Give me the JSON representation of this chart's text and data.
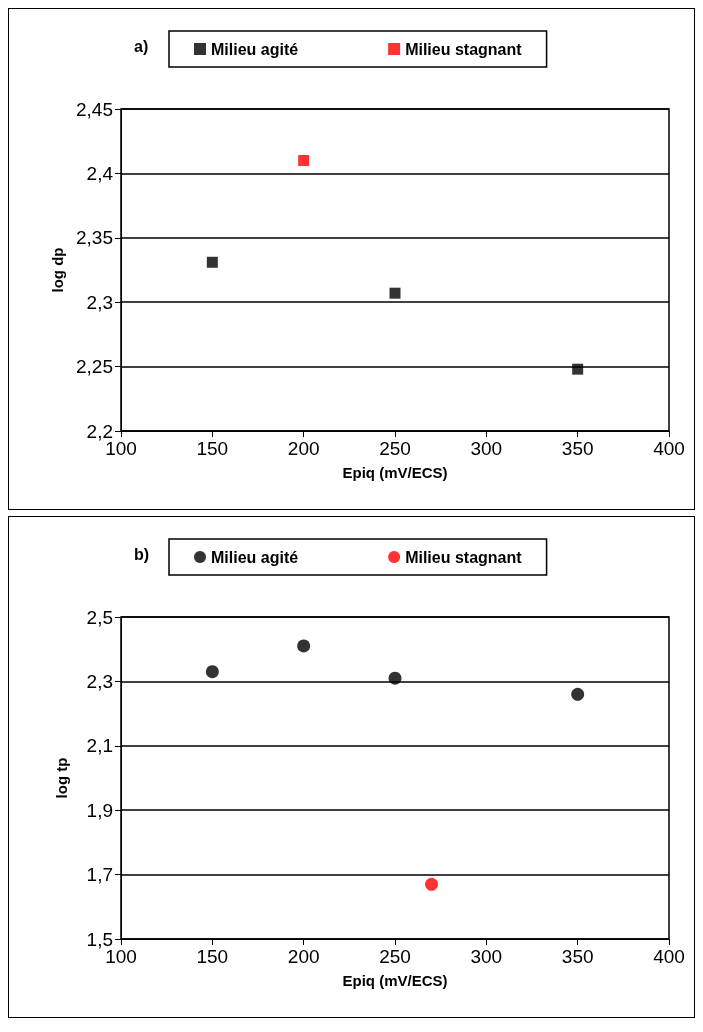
{
  "chart_data": [
    {
      "type": "scatter",
      "title": "a)",
      "xlabel": "Epiq (mV/ECS)",
      "ylabel": "log dp",
      "marker": "square",
      "grid": "y",
      "legend": "top",
      "xlim": [
        100,
        400
      ],
      "xticks": [
        100,
        150,
        200,
        250,
        300,
        350,
        400
      ],
      "ylim": [
        2.2,
        2.45
      ],
      "yticks": [
        {
          "value": 2.2,
          "label": "2,2"
        },
        {
          "value": 2.25,
          "label": "2,25"
        },
        {
          "value": 2.3,
          "label": "2,3"
        },
        {
          "value": 2.35,
          "label": "2,35"
        },
        {
          "value": 2.4,
          "label": "2,4"
        },
        {
          "value": 2.45,
          "label": "2,45"
        }
      ],
      "series": [
        {
          "name": "Milieu agité",
          "color": "#000000",
          "x": [
            150,
            250,
            350
          ],
          "values": [
            2.331,
            2.307,
            2.248
          ]
        },
        {
          "name": "Milieu stagnant",
          "color": "#ff0000",
          "x": [
            200
          ],
          "values": [
            2.41
          ]
        }
      ]
    },
    {
      "type": "scatter",
      "title": "b)",
      "xlabel": "Epiq (mV/ECS)",
      "ylabel": "log tp",
      "marker": "circle",
      "grid": "y",
      "legend": "top",
      "xlim": [
        100,
        400
      ],
      "xticks": [
        100,
        150,
        200,
        250,
        300,
        350,
        400
      ],
      "ylim": [
        1.5,
        2.5
      ],
      "yticks": [
        {
          "value": 1.5,
          "label": "1,5"
        },
        {
          "value": 1.7,
          "label": "1,7"
        },
        {
          "value": 1.9,
          "label": "1,9"
        },
        {
          "value": 2.1,
          "label": "2,1"
        },
        {
          "value": 2.3,
          "label": "2,3"
        },
        {
          "value": 2.5,
          "label": "2,5"
        }
      ],
      "series": [
        {
          "name": "Milieu agité",
          "color": "#000000",
          "x": [
            150,
            200,
            250,
            350
          ],
          "values": [
            2.33,
            2.41,
            2.31,
            2.26
          ]
        },
        {
          "name": "Milieu stagnant",
          "color": "#ff0000",
          "x": [
            270
          ],
          "values": [
            1.67
          ]
        }
      ]
    }
  ]
}
